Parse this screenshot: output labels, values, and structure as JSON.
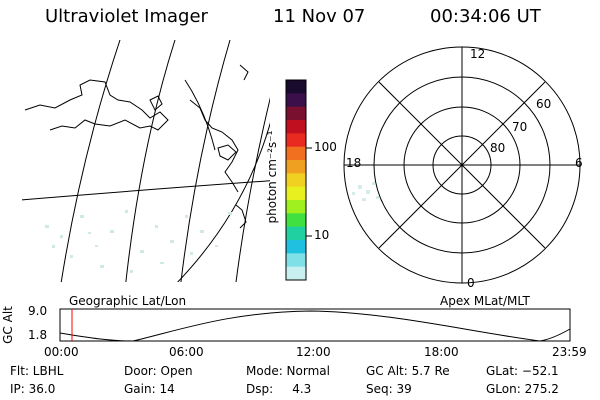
{
  "header": {
    "instrument": "Ultraviolet Imager",
    "date": "11 Nov 07",
    "time": "00:34:06 UT"
  },
  "colorbar": {
    "unit_label": "photon cm⁻²s⁻¹",
    "tick_100": "100",
    "tick_10": "10",
    "colors_top_to_bottom": [
      "#1a0a2e",
      "#3a0f4a",
      "#7a1030",
      "#c01020",
      "#e82a20",
      "#f07020",
      "#f0a020",
      "#f0d020",
      "#e8f020",
      "#a0f020",
      "#40e040",
      "#20d0a0",
      "#20c0e0",
      "#80e0e8",
      "#c8f0f0"
    ]
  },
  "geo_map": {
    "caption": "Geographic Lat/Lon"
  },
  "polar_plot": {
    "caption": "Apex MLat/MLT",
    "mlt_top": "12",
    "mlt_bottom": "0",
    "mlt_left": "18",
    "mlt_right": "6",
    "lat_60": "60",
    "lat_70": "70",
    "lat_80": "80"
  },
  "altitude_plot": {
    "ylabel": "GC Alt",
    "y_max": "9.0",
    "y_min": "1.8",
    "x_ticks": [
      "00:00",
      "06:00",
      "12:00",
      "18:00",
      "23:59"
    ],
    "marker_color": "#ff0000"
  },
  "info": {
    "filter": "Flt: LBHL",
    "ip": "IP: 36.0",
    "door": "Door: Open",
    "gain": "Gain: 14",
    "mode": "Mode: Normal",
    "dsp": "Dsp:     4.3",
    "gc_alt": "GC Alt: 5.7 Re",
    "seq": "Seq: 39",
    "glat": "GLat: −52.1",
    "glon": "GLon: 275.2"
  }
}
